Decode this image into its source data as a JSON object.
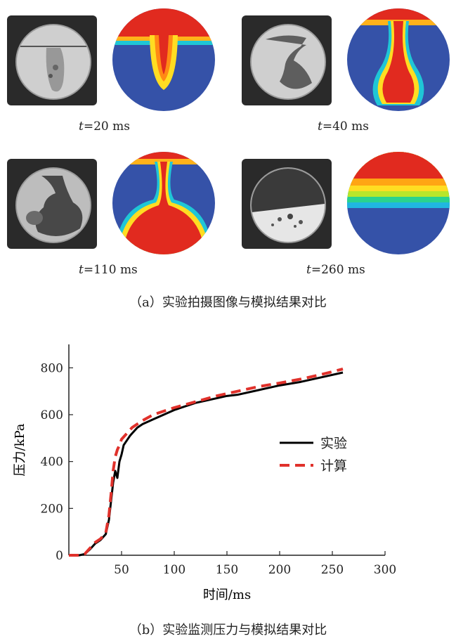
{
  "panel_a": {
    "snapshots": [
      {
        "t_var": "t",
        "t_value": "=20 ms"
      },
      {
        "t_var": "t",
        "t_value": "=40 ms"
      },
      {
        "t_var": "t",
        "t_value": "=110 ms"
      },
      {
        "t_var": "t",
        "t_value": "=260 ms"
      }
    ],
    "caption": "（a）实验拍摄图像与模拟结果对比"
  },
  "panel_b": {
    "caption": "（b）实验监测压力与模拟结果对比"
  },
  "chart_data": {
    "type": "line",
    "xlabel": "时间/ms",
    "ylabel": "压力/kPa",
    "xlim": [
      0,
      300
    ],
    "ylim": [
      0,
      900
    ],
    "xticks": [
      50,
      100,
      150,
      200,
      250,
      300
    ],
    "yticks": [
      0,
      200,
      400,
      600,
      800
    ],
    "legend_position": "center-right",
    "series": [
      {
        "name": "实验",
        "color": "#000000",
        "style": "solid",
        "x": [
          0,
          10,
          15,
          20,
          25,
          30,
          35,
          38,
          40,
          42,
          44,
          46,
          48,
          50,
          52,
          55,
          58,
          60,
          65,
          70,
          80,
          90,
          100,
          120,
          140,
          150,
          160,
          180,
          200,
          220,
          240,
          260
        ],
        "y": [
          0,
          0,
          5,
          25,
          50,
          65,
          90,
          150,
          230,
          310,
          360,
          330,
          400,
          430,
          470,
          490,
          510,
          520,
          545,
          560,
          580,
          600,
          620,
          650,
          670,
          680,
          685,
          705,
          725,
          740,
          760,
          780
        ]
      },
      {
        "name": "计算",
        "color": "#e0312b",
        "style": "dashed",
        "x": [
          0,
          10,
          15,
          20,
          25,
          30,
          35,
          38,
          40,
          42,
          44,
          46,
          48,
          50,
          55,
          60,
          65,
          70,
          80,
          90,
          100,
          120,
          140,
          160,
          180,
          200,
          220,
          240,
          260
        ],
        "y": [
          0,
          0,
          5,
          30,
          55,
          70,
          95,
          170,
          260,
          360,
          420,
          450,
          470,
          495,
          520,
          545,
          560,
          575,
          600,
          615,
          630,
          655,
          680,
          700,
          720,
          735,
          752,
          772,
          795
        ]
      }
    ]
  }
}
